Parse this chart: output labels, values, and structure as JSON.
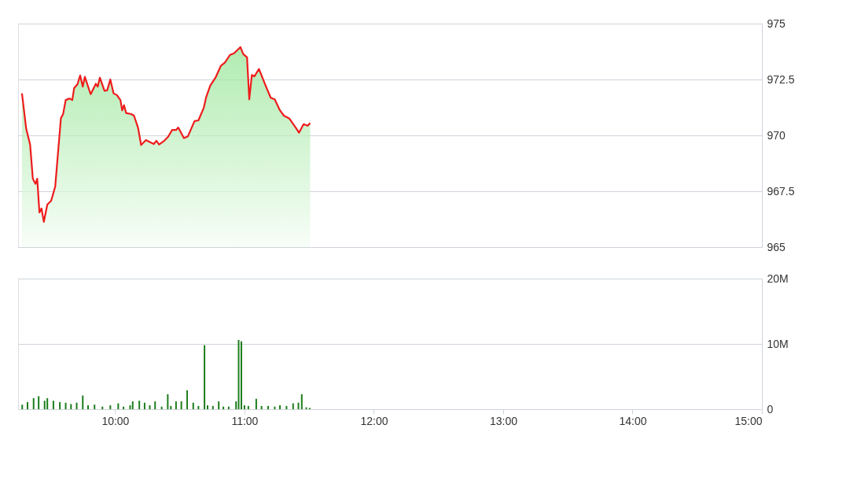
{
  "chart_data": [
    {
      "type": "area",
      "xlim": [
        9.25,
        15
      ],
      "ylim": [
        965,
        975
      ],
      "yticks": [
        965,
        {
          "value": 967.5,
          "label": "967.5"
        },
        970,
        {
          "value": 972.5,
          "label": "972.5"
        },
        975
      ],
      "grid": "y",
      "tick_labels": "y",
      "series": [
        {
          "color": "#ee1c1c",
          "x": [
            9.28,
            9.313,
            9.343,
            9.364,
            9.384,
            9.398,
            9.415,
            9.431,
            9.449,
            9.476,
            9.506,
            9.537,
            9.581,
            9.598,
            9.618,
            9.648,
            9.669,
            9.683,
            9.709,
            9.73,
            9.75,
            9.766,
            9.811,
            9.851,
            9.866,
            9.882,
            9.918,
            9.939,
            9.963,
            9.988,
            10.014,
            10.041,
            10.055,
            10.069,
            10.085,
            10.126,
            10.146,
            10.177,
            10.201,
            10.238,
            10.299,
            10.319,
            10.34,
            10.38,
            10.41,
            10.441,
            10.471,
            10.488,
            10.532,
            10.563,
            10.614,
            10.644,
            10.685,
            10.705,
            10.736,
            10.776,
            10.817,
            10.848,
            10.888,
            10.919,
            10.949,
            10.969,
            10.99,
            11.02,
            11.037,
            11.057,
            11.077,
            11.112,
            11.163,
            11.203,
            11.234,
            11.274,
            11.305,
            11.346,
            11.396,
            11.422,
            11.457,
            11.488,
            11.508
          ],
          "values": [
            971.88,
            970.29,
            969.59,
            968.06,
            967.83,
            968.06,
            966.55,
            966.73,
            966.13,
            966.9,
            967.08,
            967.71,
            970.77,
            970.95,
            971.58,
            971.65,
            971.58,
            972.11,
            972.29,
            972.68,
            972.18,
            972.62,
            971.84,
            972.31,
            972.18,
            972.58,
            971.99,
            972.02,
            972.5,
            971.88,
            971.8,
            971.58,
            971.12,
            971.35,
            971.0,
            970.95,
            970.88,
            970.35,
            969.57,
            969.79,
            969.61,
            969.76,
            969.59,
            969.76,
            969.94,
            970.24,
            970.24,
            970.35,
            969.88,
            969.96,
            970.64,
            970.67,
            971.23,
            971.73,
            972.23,
            972.58,
            973.11,
            973.25,
            973.6,
            973.67,
            973.84,
            973.95,
            973.64,
            973.49,
            971.61,
            972.7,
            972.64,
            972.97,
            972.23,
            971.68,
            971.61,
            971.12,
            970.88,
            970.76,
            970.35,
            970.12,
            970.5,
            970.43,
            970.55
          ]
        }
      ]
    },
    {
      "type": "bar",
      "xlim": [
        9.25,
        15
      ],
      "xticks": [
        {
          "value": 10,
          "label": "10:00"
        },
        {
          "value": 11,
          "label": "11:00"
        },
        {
          "value": 12,
          "label": "12:00"
        },
        {
          "value": 13,
          "label": "13:00"
        },
        {
          "value": 14,
          "label": "14:00"
        },
        {
          "value": 15,
          "label": "15:00"
        }
      ],
      "ylim": [
        0,
        20
      ],
      "yticks": [
        0,
        {
          "value": 10,
          "label": "10M"
        },
        {
          "value": 20,
          "label": "20M"
        }
      ],
      "grid": "y",
      "series": [
        {
          "color": "#1b7d1b",
          "x": [
            9.282,
            9.323,
            9.37,
            9.409,
            9.455,
            9.476,
            9.523,
            9.573,
            9.618,
            9.659,
            9.703,
            9.75,
            9.791,
            9.841,
            9.902,
            9.963,
            10.024,
            10.065,
            10.116,
            10.136,
            10.187,
            10.228,
            10.268,
            10.309,
            10.36,
            10.407,
            10.431,
            10.471,
            10.512,
            10.557,
            10.604,
            10.644,
            10.691,
            10.715,
            10.756,
            10.801,
            10.837,
            10.878,
            10.935,
            10.955,
            10.976,
            11.0,
            11.03,
            11.091,
            11.132,
            11.183,
            11.234,
            11.274,
            11.325,
            11.376,
            11.417,
            11.443,
            11.478,
            11.504
          ],
          "values": [
            0.7,
            1.1,
            1.7,
            2.0,
            1.3,
            1.7,
            1.3,
            1.1,
            1.0,
            0.8,
            1.0,
            2.1,
            0.6,
            0.7,
            0.4,
            0.6,
            0.9,
            0.4,
            0.6,
            1.2,
            1.3,
            1.0,
            0.6,
            1.2,
            0.4,
            2.3,
            0.5,
            1.2,
            1.2,
            2.9,
            1.0,
            0.5,
            9.8,
            0.6,
            0.5,
            1.2,
            0.4,
            0.4,
            1.2,
            10.6,
            10.4,
            0.6,
            0.5,
            1.6,
            0.5,
            0.5,
            0.4,
            0.6,
            0.5,
            0.9,
            1.0,
            2.3,
            0.3,
            0.2
          ]
        }
      ]
    }
  ]
}
